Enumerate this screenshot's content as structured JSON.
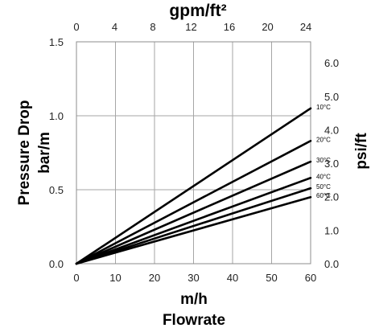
{
  "chart_data": {
    "type": "line",
    "x": [
      0,
      60
    ],
    "series": [
      {
        "name": "10°C",
        "values": [
          0,
          1.05
        ]
      },
      {
        "name": "20°C",
        "values": [
          0,
          0.83
        ]
      },
      {
        "name": "30°C",
        "values": [
          0,
          0.69
        ]
      },
      {
        "name": "40°C",
        "values": [
          0,
          0.58
        ]
      },
      {
        "name": "50°C",
        "values": [
          0,
          0.51
        ]
      },
      {
        "name": "60°C",
        "values": [
          0,
          0.45
        ]
      }
    ],
    "xlabel": "m/h",
    "xlabel2": "Flowrate",
    "ylabel": "Pressure Drop",
    "ylabel2": "bar/m",
    "top_xlabel": "gpm/ft²",
    "right_ylabel": "psi/ft",
    "xlim": [
      0,
      60
    ],
    "ylim": [
      0,
      1.5
    ],
    "top_xlim": [
      0,
      24.5
    ],
    "right_ylim": [
      0,
      6.63
    ],
    "x_ticks": [
      "0",
      "10",
      "20",
      "30",
      "40",
      "50",
      "60"
    ],
    "y_ticks": [
      "0.0",
      "0.5",
      "1.0",
      "1.5"
    ],
    "top_x_ticks": [
      "0",
      "4",
      "8",
      "12",
      "16",
      "20",
      "24"
    ],
    "right_y_ticks": [
      "0.0",
      "1.0",
      "2.0",
      "3.0",
      "4.0",
      "5.0",
      "6.0"
    ],
    "grid": true,
    "line_color": "#000000",
    "grid_color": "#a6a6a6"
  }
}
